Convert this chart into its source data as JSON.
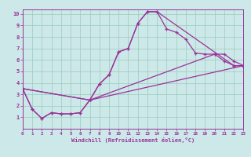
{
  "xlabel": "Windchill (Refroidissement éolien,°C)",
  "background_color": "#cce8e8",
  "grid_color": "#99ccbb",
  "line_color": "#993399",
  "xlim": [
    0,
    23
  ],
  "ylim": [
    0,
    10.4
  ],
  "xticks": [
    0,
    1,
    2,
    3,
    4,
    5,
    6,
    7,
    8,
    9,
    10,
    11,
    12,
    13,
    14,
    15,
    16,
    17,
    18,
    19,
    20,
    21,
    22,
    23
  ],
  "yticks": [
    1,
    2,
    3,
    4,
    5,
    6,
    7,
    8,
    9,
    10
  ],
  "series": [
    {
      "x": [
        0,
        1,
        2,
        3,
        4,
        5,
        6,
        7,
        8,
        9,
        10,
        11,
        12,
        13,
        14,
        15,
        16,
        17,
        18,
        19,
        20,
        21,
        22,
        23
      ],
      "y": [
        3.5,
        1.7,
        0.9,
        1.4,
        1.3,
        1.3,
        1.4,
        2.5,
        3.9,
        4.7,
        6.7,
        7.0,
        9.2,
        10.2,
        10.2,
        8.7,
        8.4,
        7.8,
        6.6,
        6.5,
        6.5,
        5.9,
        5.5,
        5.5
      ]
    },
    {
      "x": [
        0,
        1,
        2,
        3,
        4,
        5,
        6,
        7,
        8,
        9,
        10,
        11,
        12,
        13,
        14,
        22,
        23
      ],
      "y": [
        3.5,
        1.7,
        0.9,
        1.4,
        1.3,
        1.3,
        1.4,
        2.5,
        3.9,
        4.7,
        6.7,
        7.0,
        9.2,
        10.2,
        10.2,
        5.5,
        5.5
      ]
    },
    {
      "x": [
        0,
        7,
        23
      ],
      "y": [
        3.5,
        2.5,
        5.5
      ]
    },
    {
      "x": [
        0,
        7,
        20,
        21,
        22,
        23
      ],
      "y": [
        3.5,
        2.5,
        6.5,
        6.5,
        5.9,
        5.5
      ]
    }
  ]
}
